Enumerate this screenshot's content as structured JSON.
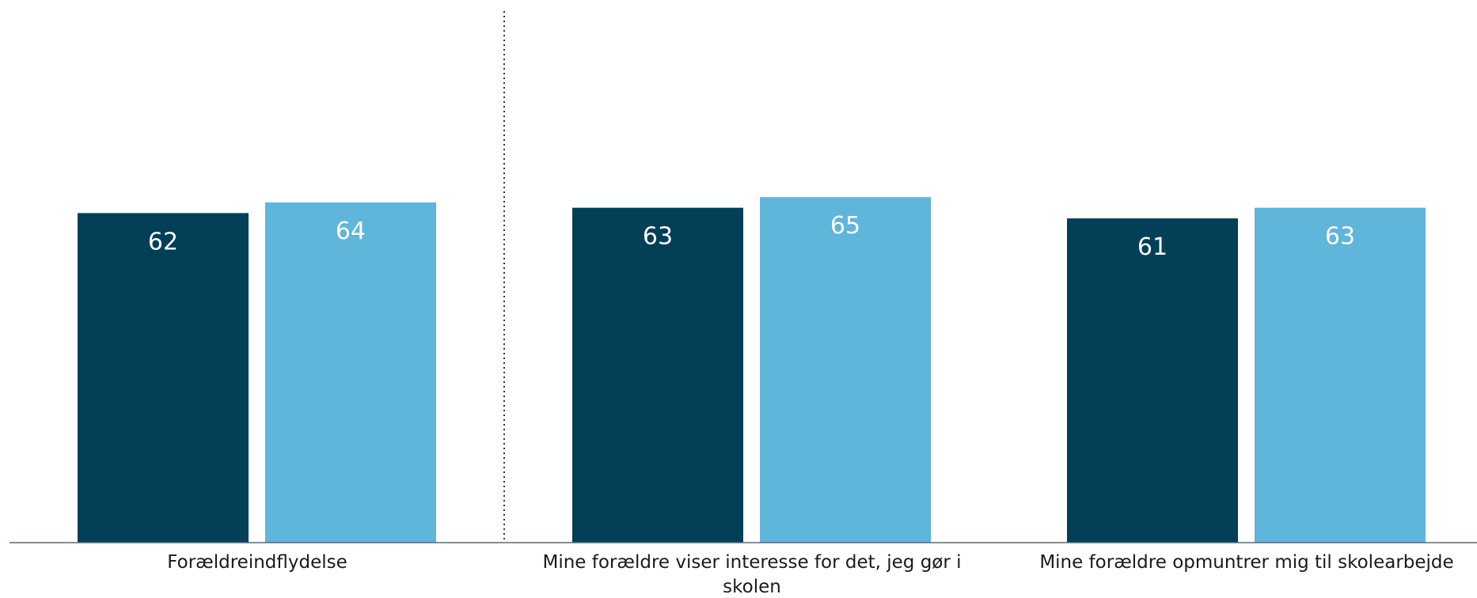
{
  "chart_data": {
    "type": "bar",
    "categories": [
      [
        "Forældreindflydelse"
      ],
      [
        "Mine forældre viser interesse for det, jeg gør i",
        "skolen"
      ],
      [
        "Mine forældre opmuntrer mig til skolearbejde"
      ]
    ],
    "series": [
      {
        "values": [
          62,
          63,
          61
        ],
        "color": "#033f57"
      },
      {
        "values": [
          64,
          65,
          63
        ],
        "color": "#5fb5da"
      }
    ],
    "ylim": [
      0,
      100
    ],
    "grid": false,
    "legend": "none",
    "separator_after_category": 0,
    "axis_color": "#5a6b78"
  }
}
